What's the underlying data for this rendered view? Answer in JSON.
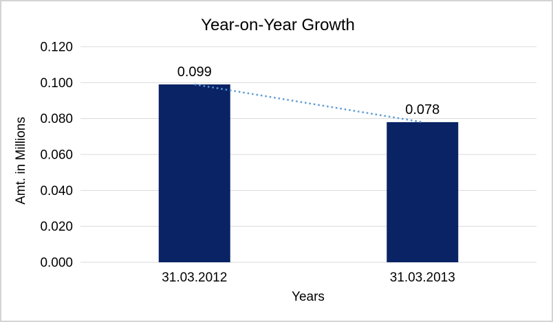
{
  "window": {
    "background": "#ffffff",
    "border_color": "#d3d3d3"
  },
  "chart_data": {
    "type": "bar",
    "title": "Year-on-Year Growth",
    "xlabel": "Years",
    "ylabel": "Amt. in Millions",
    "categories": [
      "31.03.2012",
      "31.03.2013"
    ],
    "values": [
      0.099,
      0.078
    ],
    "data_labels": [
      "0.099",
      "0.078"
    ],
    "ylim": [
      0,
      0.12
    ],
    "ytick_step": 0.02,
    "ytick_labels": [
      "0.000",
      "0.020",
      "0.040",
      "0.060",
      "0.080",
      "0.100",
      "0.120"
    ],
    "grid": true,
    "legend_position": "none",
    "bar_color": "#0a2365",
    "gridline_color": "#d9d9d9",
    "text_color": "#000000",
    "trendline": {
      "style": "dotted",
      "color": "#5b9bd5",
      "from_value": 0.099,
      "to_value": 0.078
    }
  }
}
